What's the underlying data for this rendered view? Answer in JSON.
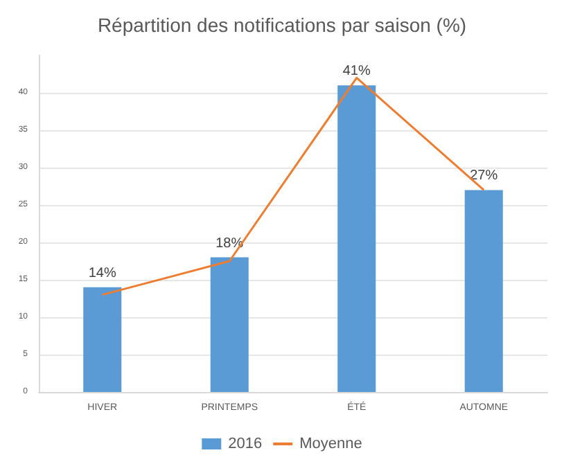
{
  "chart_data": {
    "type": "bar",
    "title": "Répartition des notifications par saison (%)",
    "categories": [
      "HIVER",
      "PRINTEMPS",
      "ÉTÉ",
      "AUTOMNE"
    ],
    "series": [
      {
        "name": "2016",
        "color": "#5b9bd5",
        "values": [
          14,
          18,
          41,
          27
        ],
        "value_labels": [
          "14%",
          "18%",
          "41%",
          "27%"
        ]
      },
      {
        "name": "Moyenne",
        "type": "line",
        "color": "#ed7d31",
        "values": [
          13,
          17.5,
          42,
          27
        ],
        "marker": "none"
      }
    ],
    "ylim": [
      0,
      45
    ],
    "yticks": [
      0,
      5,
      10,
      15,
      20,
      25,
      30,
      35,
      40
    ],
    "grid": "y",
    "legend": "bottom"
  }
}
